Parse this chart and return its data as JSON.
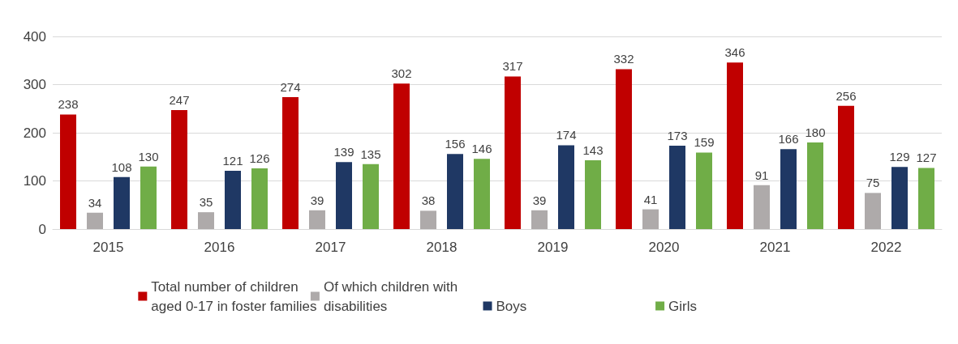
{
  "chart_data": {
    "type": "bar",
    "categories": [
      "2015",
      "2016",
      "2017",
      "2018",
      "2019",
      "2020",
      "2021",
      "2022"
    ],
    "series": [
      {
        "name": "Total number of children aged 0-17 in foster families",
        "color": "#c00000",
        "values": [
          238,
          247,
          274,
          302,
          317,
          332,
          346,
          256
        ]
      },
      {
        "name": "Of which children with disabilities",
        "color": "#aeaaaa",
        "values": [
          34,
          35,
          39,
          38,
          39,
          41,
          91,
          75
        ]
      },
      {
        "name": "Boys",
        "color": "#1f3864",
        "values": [
          108,
          121,
          139,
          156,
          174,
          173,
          166,
          129
        ]
      },
      {
        "name": "Girls",
        "color": "#70ad47",
        "values": [
          130,
          126,
          135,
          146,
          143,
          159,
          180,
          127
        ]
      }
    ],
    "ylim": [
      0,
      400
    ],
    "yticks": [
      0,
      100,
      200,
      300,
      400
    ],
    "grid": "y",
    "legend": "bottom",
    "data_labels": true
  }
}
